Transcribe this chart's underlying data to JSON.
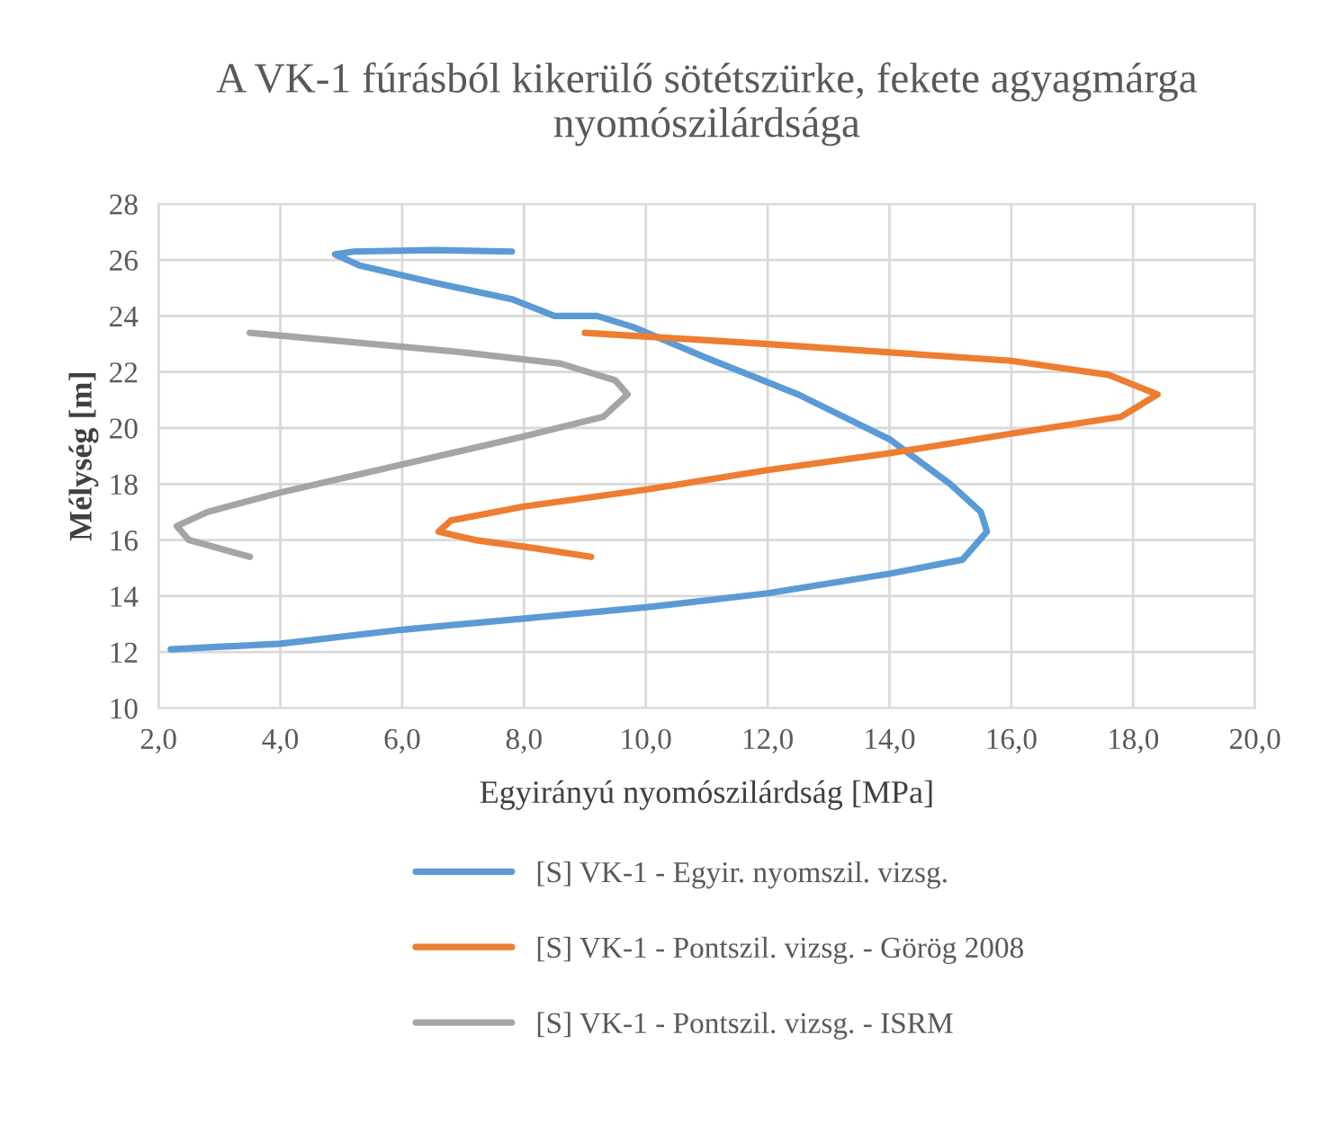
{
  "chart_data": {
    "type": "line",
    "title": "A VK-1 fúrásból kikerülő sötétszürke, fekete agyagmárga nyomószilárdsága",
    "xlabel": "Egyirányú nyomószilárdság [MPa]",
    "ylabel": "Mélység [m]",
    "xlim": [
      2,
      20
    ],
    "xticks": [
      {
        "value": 2,
        "label": "2,0"
      },
      {
        "value": 4,
        "label": "4,0"
      },
      {
        "value": 6,
        "label": "6,0"
      },
      {
        "value": 8,
        "label": "8,0"
      },
      {
        "value": 10,
        "label": "10,0"
      },
      {
        "value": 12,
        "label": "12,0"
      },
      {
        "value": 14,
        "label": "14,0"
      },
      {
        "value": 16,
        "label": "16,0"
      },
      {
        "value": 18,
        "label": "18,0"
      },
      {
        "value": 20,
        "label": "20,0"
      }
    ],
    "ylim": [
      10,
      28
    ],
    "yticks": [
      10,
      12,
      14,
      16,
      18,
      20,
      22,
      24,
      26,
      28
    ],
    "grid": true,
    "legend": "bottom",
    "marker": "none",
    "line_style": "solid",
    "series": [
      {
        "name": "[S] VK-1 - Egyir. nyomszil. vizsg.",
        "color": "#5b9bd5",
        "x": [
          7.8,
          6.5,
          5.2,
          4.9,
          5.3,
          6.5,
          7.8,
          8.5,
          9.2,
          9.8,
          11,
          12.5,
          14,
          15,
          15.5,
          15.6,
          15.2,
          14,
          12,
          10,
          8,
          6,
          4,
          2.2
        ],
        "values": [
          26.3,
          26.35,
          26.3,
          26.2,
          25.8,
          25.2,
          24.6,
          24.0,
          24.0,
          23.6,
          22.5,
          21.2,
          19.6,
          18.0,
          17.0,
          16.3,
          15.3,
          14.8,
          14.1,
          13.6,
          13.2,
          12.8,
          12.3,
          12.1
        ]
      },
      {
        "name": "[S] VK-1 - Pontszil. vizsg. - Görög 2008",
        "color": "#ed7d31",
        "x": [
          9.0,
          10.5,
          12,
          14,
          16,
          17.6,
          18.4,
          17.8,
          16,
          14,
          12,
          10,
          8,
          6.8,
          6.6,
          7.2,
          8.2,
          9.1
        ],
        "values": [
          23.4,
          23.2,
          23.0,
          22.7,
          22.4,
          21.9,
          21.2,
          20.4,
          19.8,
          19.1,
          18.5,
          17.8,
          17.2,
          16.7,
          16.3,
          16.0,
          15.7,
          15.4
        ]
      },
      {
        "name": "[S] VK-1 - Pontszil. vizsg. - ISRM",
        "color": "#a5a5a5",
        "x": [
          3.5,
          5,
          7,
          8.6,
          9.5,
          9.7,
          9.3,
          8,
          6,
          4,
          2.8,
          2.3,
          2.5,
          3.5
        ],
        "values": [
          23.4,
          23.1,
          22.7,
          22.3,
          21.7,
          21.2,
          20.4,
          19.7,
          18.7,
          17.7,
          17.0,
          16.5,
          16.0,
          15.4
        ]
      }
    ]
  }
}
